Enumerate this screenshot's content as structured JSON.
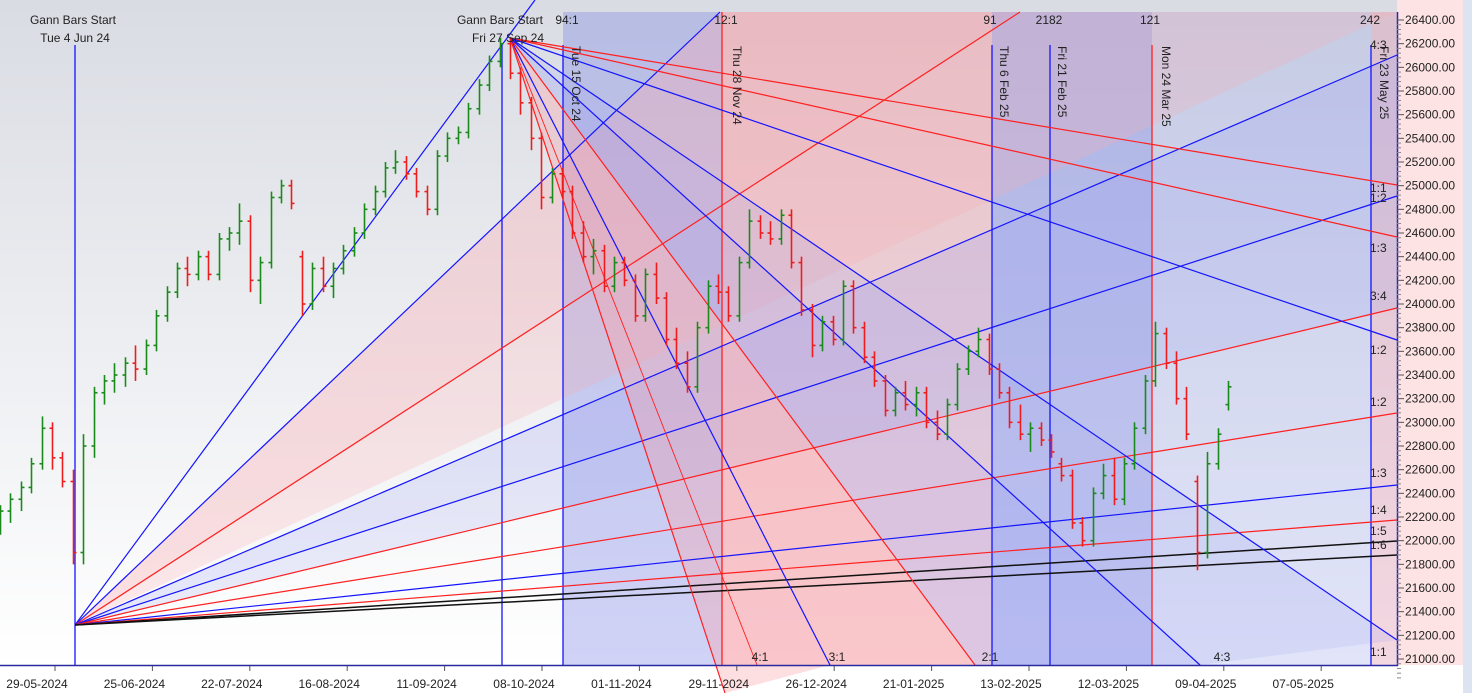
{
  "chart_data": {
    "type": "ohlc-bar",
    "title": "",
    "ylim": [
      21000,
      26400
    ],
    "y_ticks": [
      "26400.00",
      "26200.00",
      "26000.00",
      "25800.00",
      "25600.00",
      "25400.00",
      "25200.00",
      "25000.00",
      "24800.00",
      "24600.00",
      "24400.00",
      "24200.00",
      "24000.00",
      "23800.00",
      "23600.00",
      "23400.00",
      "23200.00",
      "23000.00",
      "22800.00",
      "22600.00",
      "22400.00",
      "22200.00",
      "22000.00",
      "21800.00",
      "21600.00",
      "21400.00",
      "21200.00",
      "21000.00"
    ],
    "x_ticks": [
      "29-05-2024",
      "25-06-2024",
      "22-07-2024",
      "16-08-2024",
      "11-09-2024",
      "08-10-2024",
      "01-11-2024",
      "29-11-2024",
      "26-12-2024",
      "21-01-2025",
      "13-02-2025",
      "12-03-2025",
      "09-04-2025",
      "07-05-2025"
    ],
    "colors": {
      "up": "#1a8a1a",
      "down": "#ee1c1c",
      "blue_line": "#1414ff",
      "red_line": "#ff2020",
      "black_line": "#111111"
    },
    "bars_ohlc": [
      [
        22150,
        22300,
        22050,
        22250
      ],
      [
        22250,
        22400,
        22150,
        22350
      ],
      [
        22350,
        22500,
        22250,
        22450
      ],
      [
        22450,
        22700,
        22400,
        22650
      ],
      [
        22650,
        23050,
        22600,
        22950
      ],
      [
        22950,
        23000,
        22600,
        22700
      ],
      [
        22700,
        22750,
        22450,
        22500
      ],
      [
        22500,
        22600,
        21800,
        21900
      ],
      [
        21900,
        22900,
        21800,
        22800
      ],
      [
        22800,
        23300,
        22700,
        23250
      ],
      [
        23250,
        23400,
        23150,
        23350
      ],
      [
        23350,
        23500,
        23250,
        23400
      ],
      [
        23400,
        23550,
        23300,
        23500
      ],
      [
        23500,
        23650,
        23350,
        23450
      ],
      [
        23450,
        23700,
        23400,
        23650
      ],
      [
        23650,
        23950,
        23600,
        23900
      ],
      [
        23900,
        24150,
        23850,
        24100
      ],
      [
        24100,
        24350,
        24050,
        24300
      ],
      [
        24300,
        24400,
        24150,
        24250
      ],
      [
        24250,
        24450,
        24200,
        24400
      ],
      [
        24400,
        24450,
        24200,
        24250
      ],
      [
        24250,
        24600,
        24200,
        24550
      ],
      [
        24550,
        24650,
        24450,
        24600
      ],
      [
        24600,
        24850,
        24500,
        24700
      ],
      [
        24700,
        24750,
        24100,
        24200
      ],
      [
        24200,
        24400,
        24000,
        24350
      ],
      [
        24350,
        24950,
        24300,
        24900
      ],
      [
        24900,
        25050,
        24850,
        25000
      ],
      [
        25000,
        25050,
        24800,
        24850
      ],
      [
        24400,
        24450,
        23900,
        24000
      ],
      [
        24000,
        24350,
        23950,
        24300
      ],
      [
        24300,
        24400,
        24100,
        24150
      ],
      [
        24150,
        24350,
        24050,
        24300
      ],
      [
        24300,
        24500,
        24250,
        24450
      ],
      [
        24450,
        24650,
        24400,
        24600
      ],
      [
        24600,
        24850,
        24550,
        24800
      ],
      [
        24800,
        25000,
        24750,
        24950
      ],
      [
        24950,
        25200,
        24900,
        25150
      ],
      [
        25150,
        25300,
        25100,
        25200
      ],
      [
        25200,
        25250,
        25050,
        25100
      ],
      [
        25100,
        25150,
        24900,
        24950
      ],
      [
        24950,
        25000,
        24750,
        24800
      ],
      [
        24800,
        25300,
        24750,
        25250
      ],
      [
        25250,
        25450,
        25200,
        25400
      ],
      [
        25400,
        25500,
        25350,
        25450
      ],
      [
        25450,
        25700,
        25400,
        25650
      ],
      [
        25650,
        25900,
        25600,
        25850
      ],
      [
        25850,
        26100,
        25800,
        26050
      ],
      [
        26050,
        26250,
        26000,
        26200
      ],
      [
        26200,
        26250,
        25900,
        25950
      ],
      [
        25950,
        26000,
        25600,
        25700
      ],
      [
        25700,
        25750,
        25300,
        25400
      ],
      [
        25400,
        25450,
        24800,
        24900
      ],
      [
        24900,
        25150,
        24850,
        25100
      ],
      [
        25100,
        25150,
        24900,
        24950
      ],
      [
        24950,
        25000,
        24550,
        24600
      ],
      [
        24600,
        24700,
        24350,
        24400
      ],
      [
        24400,
        24550,
        24250,
        24450
      ],
      [
        24450,
        24500,
        24100,
        24150
      ],
      [
        24150,
        24400,
        24100,
        24350
      ],
      [
        24350,
        24400,
        24150,
        24200
      ],
      [
        24200,
        24250,
        23850,
        23900
      ],
      [
        23900,
        24300,
        23850,
        24250
      ],
      [
        24250,
        24350,
        24000,
        24050
      ],
      [
        24050,
        24100,
        23650,
        23700
      ],
      [
        23700,
        23800,
        23450,
        23500
      ],
      [
        23500,
        23600,
        23250,
        23300
      ],
      [
        23300,
        23850,
        23250,
        23800
      ],
      [
        23800,
        24200,
        23750,
        24150
      ],
      [
        24150,
        24250,
        24000,
        24100
      ],
      [
        24100,
        24150,
        23850,
        23900
      ],
      [
        23900,
        24400,
        23850,
        24350
      ],
      [
        24350,
        24800,
        24300,
        24700
      ],
      [
        24700,
        24750,
        24550,
        24600
      ],
      [
        24600,
        24700,
        24500,
        24550
      ],
      [
        24550,
        24800,
        24500,
        24750
      ],
      [
        24750,
        24800,
        24300,
        24350
      ],
      [
        24350,
        24400,
        23900,
        23950
      ],
      [
        23950,
        24000,
        23550,
        23650
      ],
      [
        23650,
        23900,
        23600,
        23850
      ],
      [
        23850,
        23900,
        23650,
        23700
      ],
      [
        23700,
        24200,
        23650,
        24150
      ],
      [
        24150,
        24200,
        23750,
        23800
      ],
      [
        23800,
        23850,
        23500,
        23550
      ],
      [
        23550,
        23600,
        23300,
        23350
      ],
      [
        23350,
        23400,
        23050,
        23100
      ],
      [
        23100,
        23300,
        23050,
        23250
      ],
      [
        23250,
        23350,
        23100,
        23150
      ],
      [
        23150,
        23300,
        23050,
        23250
      ],
      [
        23250,
        23300,
        22950,
        23000
      ],
      [
        23000,
        23100,
        22850,
        22900
      ],
      [
        22900,
        23200,
        22850,
        23150
      ],
      [
        23150,
        23500,
        23100,
        23450
      ],
      [
        23450,
        23650,
        23400,
        23600
      ],
      [
        23600,
        23800,
        23550,
        23700
      ],
      [
        23700,
        23750,
        23400,
        23450
      ],
      [
        23450,
        23500,
        23200,
        23250
      ],
      [
        23250,
        23300,
        22950,
        23000
      ],
      [
        23000,
        23150,
        22850,
        22900
      ],
      [
        22900,
        23000,
        22750,
        22950
      ],
      [
        22950,
        23000,
        22800,
        22850
      ],
      [
        22850,
        22900,
        22700,
        22750
      ],
      [
        22650,
        22700,
        22500,
        22550
      ],
      [
        22550,
        22600,
        22100,
        22150
      ],
      [
        22150,
        22200,
        21950,
        22000
      ],
      [
        22000,
        22450,
        21950,
        22400
      ],
      [
        22400,
        22650,
        22350,
        22550
      ],
      [
        22550,
        22700,
        22300,
        22350
      ],
      [
        22350,
        22700,
        22300,
        22650
      ],
      [
        22650,
        23000,
        22600,
        22950
      ],
      [
        22950,
        23400,
        22900,
        23350
      ],
      [
        23350,
        23850,
        23300,
        23750
      ],
      [
        23750,
        23800,
        23450,
        23500
      ],
      [
        23500,
        23600,
        23150,
        23200
      ],
      [
        23200,
        23300,
        22850,
        22900
      ],
      [
        22500,
        22550,
        21750,
        21900
      ],
      [
        21900,
        22750,
        21850,
        22650
      ],
      [
        22650,
        22950,
        22600,
        22900
      ],
      [
        23150,
        23350,
        23100,
        23300
      ]
    ],
    "gann_starts": [
      {
        "line1": "Gann Bars Start",
        "line2": "Tue 4 Jun 24"
      },
      {
        "line1": "Gann Bars Start",
        "line2": "Fri 27 Sep 24"
      }
    ],
    "time_lines": [
      {
        "label": "Tue 15 Oct 24",
        "count": "94:1",
        "color": "blue"
      },
      {
        "label": "Thu 28 Nov 24",
        "count": "12:1",
        "color": "red"
      },
      {
        "label": "Thu 6 Feb 25",
        "count": "91",
        "color": "blue"
      },
      {
        "label": "Fri 21 Feb 25",
        "count": "2182",
        "color": "blue"
      },
      {
        "label": "Mon 24 Mar 25",
        "count": "121",
        "color": "red"
      },
      {
        "label": "Fri 23 May 25",
        "count": "242",
        "color": "blue"
      }
    ],
    "right_angle_labels": [
      "4:3",
      "1:1",
      "1:2",
      "1:3",
      "3:4",
      "1:2",
      "1:2",
      "1:3",
      "1:4",
      "1:5",
      "1:6",
      "1:1"
    ],
    "bottom_angle_labels": [
      "4:1",
      "3:1",
      "2:1",
      "4:3"
    ]
  }
}
